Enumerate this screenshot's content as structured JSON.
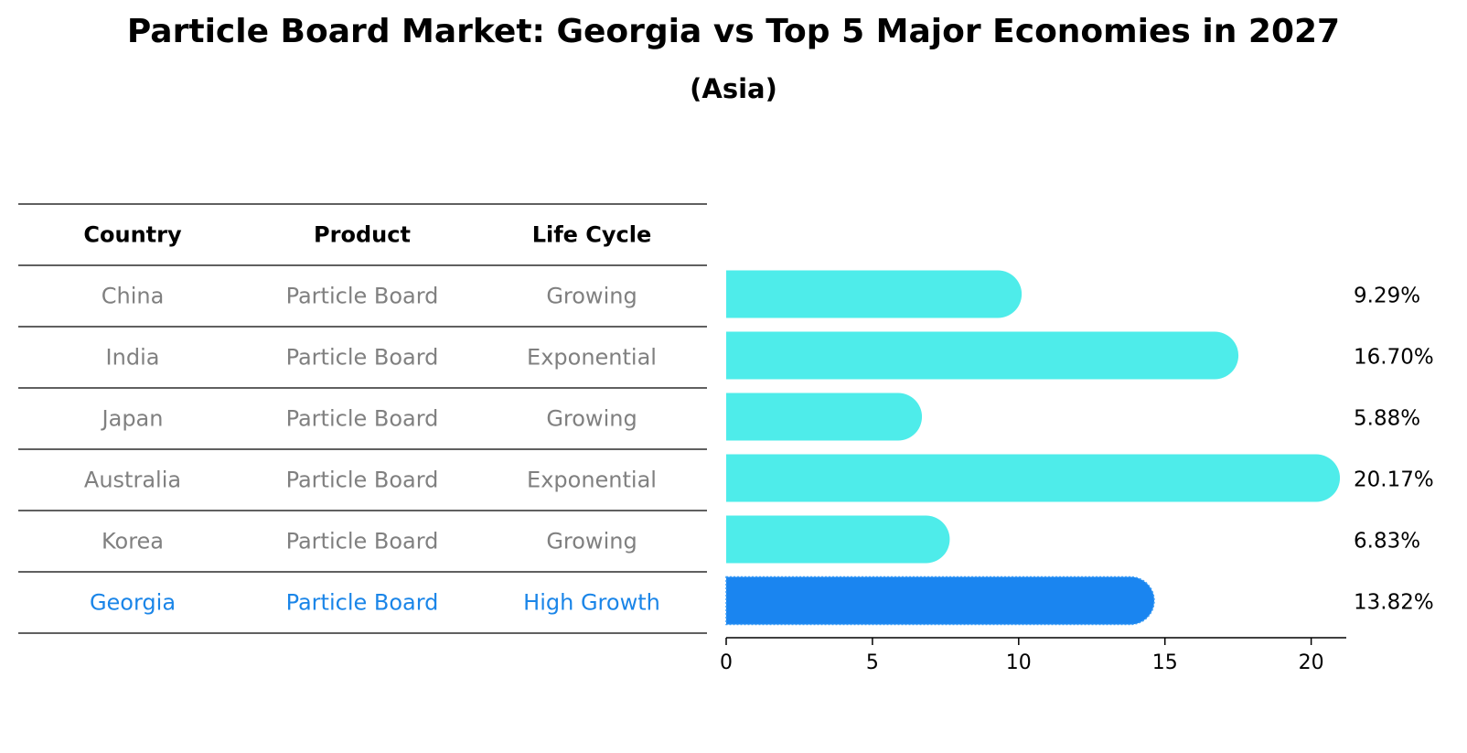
{
  "title": "Particle Board Market: Georgia vs Top 5 Major Economies in 2027",
  "subtitle": "(Asia)",
  "table": {
    "headers": [
      "Country",
      "Product",
      "Life Cycle"
    ],
    "rows": [
      [
        "China",
        "Particle Board",
        "Growing"
      ],
      [
        "India",
        "Particle Board",
        "Exponential"
      ],
      [
        "Japan",
        "Particle Board",
        "Growing"
      ],
      [
        "Australia",
        "Particle Board",
        "Exponential"
      ],
      [
        "Korea",
        "Particle Board",
        "Growing"
      ],
      [
        "Georgia",
        "Particle Board",
        "High Growth"
      ]
    ],
    "highlight_row": 5
  },
  "chart_data": {
    "type": "bar",
    "orientation": "horizontal",
    "categories": [
      "China",
      "India",
      "Japan",
      "Australia",
      "Korea",
      "Georgia"
    ],
    "values": [
      9.29,
      16.7,
      5.88,
      20.17,
      6.83,
      13.82
    ],
    "value_labels": [
      "9.29%",
      "16.70%",
      "5.88%",
      "20.17%",
      "6.83%",
      "13.82%"
    ],
    "xlim": [
      0,
      21.2
    ],
    "xticks": [
      0,
      5,
      10,
      15,
      20
    ],
    "grid": false,
    "colors": {
      "default": "#4eecea",
      "highlight": "#1a85f0"
    },
    "highlight_index": 5
  }
}
